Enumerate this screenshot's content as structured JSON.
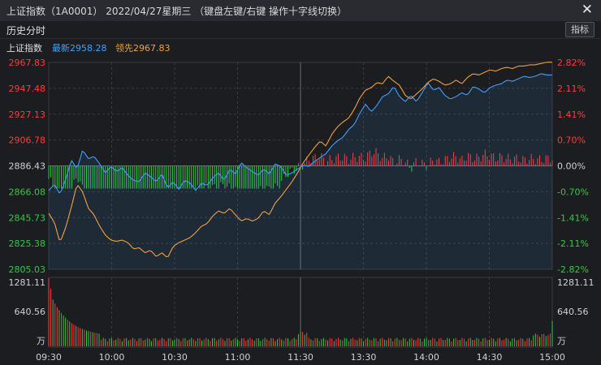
{
  "window": {
    "title": "上证指数（1A0001）  2022/04/27星期三  （键盘左键/右键 操作十字线切换）",
    "close_icon": "close-icon"
  },
  "toolbar": {
    "tab_label": "历史分时",
    "indicator_button": "指标"
  },
  "legend": {
    "name": "上证指数",
    "latest": "最新2958.28",
    "leading": "领先2967.83"
  },
  "colors": {
    "up": "#ff3b3b",
    "down": "#2ecc40",
    "price": "#3ea0ff",
    "leading": "#f0a040",
    "grid": "#3a3b40",
    "axis": "#d0d0d0"
  },
  "chart_data": {
    "type": "line",
    "base_price": 2886.43,
    "y_left_ticks": [
      "2967.83",
      "2947.48",
      "2927.13",
      "2906.78",
      "2886.43",
      "2866.08",
      "2845.73",
      "2825.38",
      "2805.03"
    ],
    "y_right_ticks": [
      "2.82%",
      "2.11%",
      "1.41%",
      "0.70%",
      "0.00%",
      "-0.70%",
      "-1.41%",
      "-2.11%",
      "-2.82%"
    ],
    "ylim": [
      2805.03,
      2967.83
    ],
    "x_ticks": [
      "09:30",
      "10:00",
      "10:30",
      "11:00",
      "11:30",
      "13:30",
      "14:00",
      "14:30",
      "15:00"
    ],
    "volume_ticks": [
      "1281.11",
      "640.56"
    ],
    "volume_unit": "万",
    "volume_max": 1281.11,
    "series": [
      {
        "name": "最新",
        "points": [
          [
            0,
            2867
          ],
          [
            2,
            2872
          ],
          [
            4,
            2864
          ],
          [
            6,
            2876
          ],
          [
            8,
            2891
          ],
          [
            10,
            2884
          ],
          [
            12,
            2899
          ],
          [
            14,
            2892
          ],
          [
            16,
            2894
          ],
          [
            18,
            2888
          ],
          [
            20,
            2881
          ],
          [
            22,
            2886
          ],
          [
            24,
            2882
          ],
          [
            26,
            2885
          ],
          [
            28,
            2879
          ],
          [
            30,
            2875
          ],
          [
            32,
            2874
          ],
          [
            34,
            2881
          ],
          [
            36,
            2878
          ],
          [
            38,
            2874
          ],
          [
            40,
            2880
          ],
          [
            42,
            2869
          ],
          [
            44,
            2874
          ],
          [
            46,
            2868
          ],
          [
            48,
            2875
          ],
          [
            50,
            2873
          ],
          [
            52,
            2867
          ],
          [
            54,
            2873
          ],
          [
            56,
            2871
          ],
          [
            58,
            2877
          ],
          [
            60,
            2881
          ],
          [
            62,
            2875
          ],
          [
            64,
            2884
          ],
          [
            66,
            2880
          ],
          [
            68,
            2889
          ],
          [
            70,
            2885
          ],
          [
            72,
            2882
          ],
          [
            74,
            2879
          ],
          [
            76,
            2884
          ],
          [
            78,
            2880
          ],
          [
            80,
            2888
          ],
          [
            82,
            2886
          ],
          [
            84,
            2879
          ],
          [
            86,
            2881
          ],
          [
            88,
            2884
          ],
          [
            90,
            2887
          ],
          [
            92,
            2886
          ],
          [
            94,
            2890
          ],
          [
            96,
            2893
          ],
          [
            98,
            2896
          ],
          [
            100,
            2902
          ],
          [
            102,
            2906
          ],
          [
            104,
            2909
          ],
          [
            106,
            2915
          ],
          [
            108,
            2919
          ],
          [
            110,
            2928
          ],
          [
            112,
            2935
          ],
          [
            114,
            2929
          ],
          [
            116,
            2934
          ],
          [
            118,
            2941
          ],
          [
            120,
            2943
          ],
          [
            122,
            2949
          ],
          [
            124,
            2941
          ],
          [
            126,
            2937
          ],
          [
            128,
            2942
          ],
          [
            130,
            2937
          ],
          [
            132,
            2944
          ],
          [
            134,
            2952
          ],
          [
            136,
            2946
          ],
          [
            138,
            2948
          ],
          [
            140,
            2942
          ],
          [
            142,
            2939
          ],
          [
            144,
            2941
          ],
          [
            146,
            2944
          ],
          [
            148,
            2942
          ],
          [
            150,
            2949
          ],
          [
            152,
            2947
          ],
          [
            154,
            2944
          ],
          [
            156,
            2948
          ],
          [
            158,
            2950
          ],
          [
            160,
            2951
          ],
          [
            162,
            2954
          ],
          [
            164,
            2953
          ],
          [
            166,
            2955
          ],
          [
            168,
            2957
          ],
          [
            170,
            2956
          ],
          [
            172,
            2957
          ],
          [
            174,
            2959
          ],
          [
            176,
            2958
          ],
          [
            178,
            2958
          ]
        ]
      },
      {
        "name": "领先",
        "points": [
          [
            0,
            2849
          ],
          [
            2,
            2842
          ],
          [
            4,
            2826
          ],
          [
            6,
            2838
          ],
          [
            8,
            2854
          ],
          [
            10,
            2872
          ],
          [
            12,
            2866
          ],
          [
            14,
            2853
          ],
          [
            16,
            2848
          ],
          [
            18,
            2839
          ],
          [
            20,
            2832
          ],
          [
            22,
            2828
          ],
          [
            24,
            2827
          ],
          [
            26,
            2828
          ],
          [
            28,
            2826
          ],
          [
            30,
            2821
          ],
          [
            32,
            2822
          ],
          [
            34,
            2818
          ],
          [
            36,
            2820
          ],
          [
            38,
            2815
          ],
          [
            40,
            2818
          ],
          [
            42,
            2814
          ],
          [
            44,
            2823
          ],
          [
            46,
            2826
          ],
          [
            48,
            2828
          ],
          [
            50,
            2830
          ],
          [
            52,
            2834
          ],
          [
            54,
            2839
          ],
          [
            56,
            2841
          ],
          [
            58,
            2847
          ],
          [
            60,
            2851
          ],
          [
            62,
            2849
          ],
          [
            64,
            2853
          ],
          [
            66,
            2848
          ],
          [
            68,
            2843
          ],
          [
            70,
            2845
          ],
          [
            72,
            2843
          ],
          [
            74,
            2845
          ],
          [
            76,
            2851
          ],
          [
            78,
            2848
          ],
          [
            80,
            2857
          ],
          [
            82,
            2862
          ],
          [
            84,
            2868
          ],
          [
            86,
            2874
          ],
          [
            88,
            2881
          ],
          [
            90,
            2889
          ],
          [
            92,
            2895
          ],
          [
            94,
            2901
          ],
          [
            96,
            2906
          ],
          [
            98,
            2902
          ],
          [
            100,
            2911
          ],
          [
            102,
            2917
          ],
          [
            104,
            2921
          ],
          [
            106,
            2924
          ],
          [
            108,
            2931
          ],
          [
            110,
            2940
          ],
          [
            112,
            2946
          ],
          [
            114,
            2948
          ],
          [
            116,
            2952
          ],
          [
            118,
            2951
          ],
          [
            120,
            2957
          ],
          [
            122,
            2953
          ],
          [
            124,
            2950
          ],
          [
            126,
            2942
          ],
          [
            128,
            2939
          ],
          [
            130,
            2943
          ],
          [
            132,
            2947
          ],
          [
            134,
            2952
          ],
          [
            136,
            2955
          ],
          [
            138,
            2953
          ],
          [
            140,
            2950
          ],
          [
            142,
            2951
          ],
          [
            144,
            2954
          ],
          [
            146,
            2951
          ],
          [
            148,
            2956
          ],
          [
            150,
            2959
          ],
          [
            152,
            2958
          ],
          [
            154,
            2960
          ],
          [
            156,
            2962
          ],
          [
            158,
            2961
          ],
          [
            160,
            2963
          ],
          [
            162,
            2964
          ],
          [
            164,
            2963
          ],
          [
            166,
            2965
          ],
          [
            168,
            2965
          ],
          [
            170,
            2966
          ],
          [
            172,
            2966
          ],
          [
            174,
            2967
          ],
          [
            176,
            2968
          ],
          [
            178,
            2968
          ]
        ]
      }
    ]
  }
}
